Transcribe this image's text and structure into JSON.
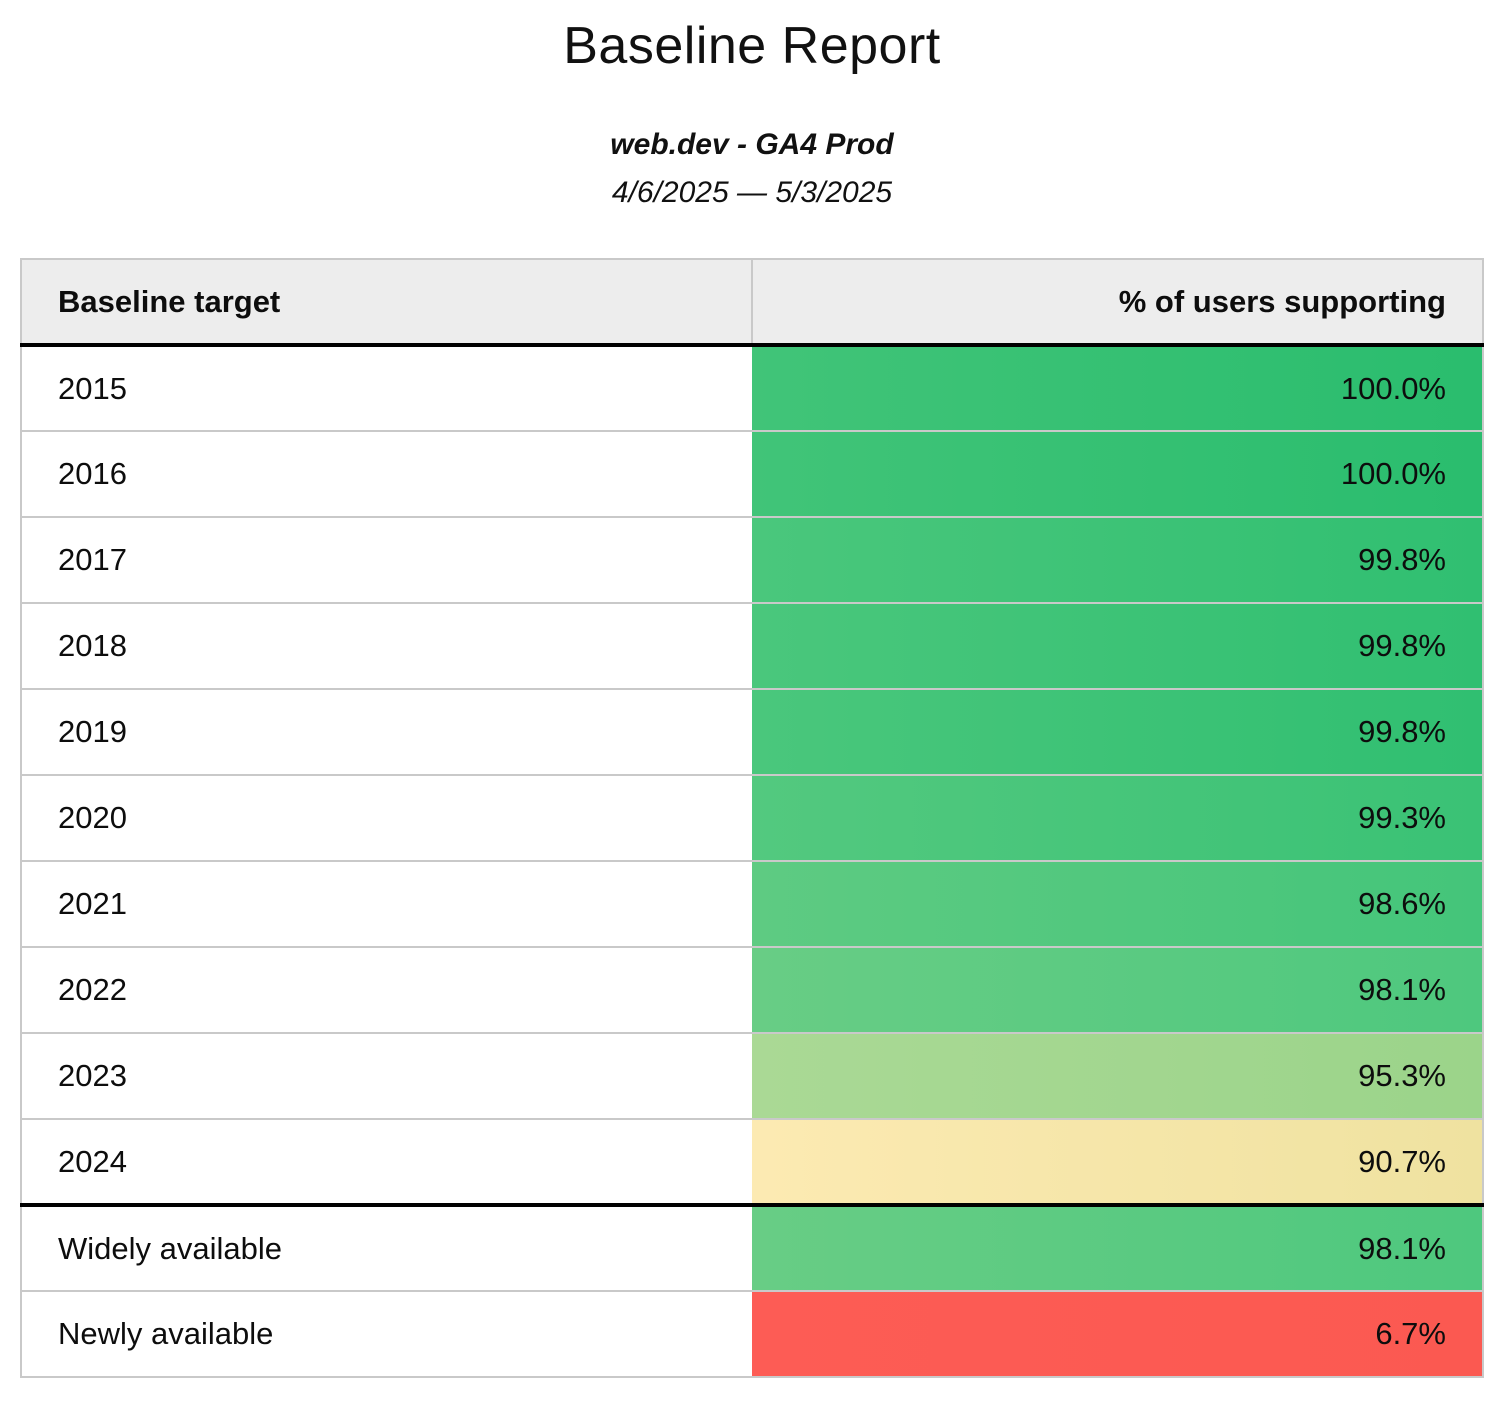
{
  "report": {
    "title": "Baseline Report",
    "subtitle": "web.dev - GA4 Prod",
    "date_range": "4/6/2025 — 5/3/2025"
  },
  "table": {
    "columns": {
      "target": "Baseline target",
      "percent": "% of users supporting"
    },
    "rows": [
      {
        "label": "2015",
        "value": "100.0%",
        "color_left": "#41c478",
        "color_right": "#2abd6e",
        "section_end": false
      },
      {
        "label": "2016",
        "value": "100.0%",
        "color_left": "#41c478",
        "color_right": "#2abd6e",
        "section_end": false
      },
      {
        "label": "2017",
        "value": "99.8%",
        "color_left": "#4ac77c",
        "color_right": "#30bf71",
        "section_end": false
      },
      {
        "label": "2018",
        "value": "99.8%",
        "color_left": "#4ac77c",
        "color_right": "#30bf71",
        "section_end": false
      },
      {
        "label": "2019",
        "value": "99.8%",
        "color_left": "#4ac77c",
        "color_right": "#30bf71",
        "section_end": false
      },
      {
        "label": "2020",
        "value": "99.3%",
        "color_left": "#53c97f",
        "color_right": "#3ac275",
        "section_end": false
      },
      {
        "label": "2021",
        "value": "98.6%",
        "color_left": "#5ecb82",
        "color_right": "#44c57a",
        "section_end": false
      },
      {
        "label": "2022",
        "value": "98.1%",
        "color_left": "#68cd85",
        "color_right": "#4ec87e",
        "section_end": false
      },
      {
        "label": "2023",
        "value": "95.3%",
        "color_left": "#aad995",
        "color_right": "#9bd48a",
        "section_end": false
      },
      {
        "label": "2024",
        "value": "90.7%",
        "color_left": "#fceab2",
        "color_right": "#efe2a0",
        "section_end": true
      },
      {
        "label": "Widely available",
        "value": "98.1%",
        "color_left": "#68cd85",
        "color_right": "#4ec87e",
        "section_end": false
      },
      {
        "label": "Newly available",
        "value": "6.7%",
        "color_left": "#fd5c55",
        "color_right": "#fb5951",
        "section_end": false
      }
    ]
  },
  "colors": {
    "header_background": "#ededed",
    "grid_border": "#c9c9c9",
    "section_rule": "#000000",
    "text": "#111111",
    "scale_high_green": "#2abd6e",
    "scale_mid_yellow": "#efe2a0",
    "scale_low_red": "#fd5c55"
  }
}
